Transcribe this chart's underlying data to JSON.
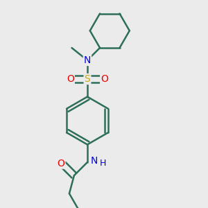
{
  "background_color": "#ebebeb",
  "bond_color": "#2d6e5a",
  "atom_colors": {
    "N": "#0000ee",
    "O": "#ee0000",
    "S": "#ccaa00"
  },
  "bond_width": 1.8,
  "figsize": [
    3.0,
    3.0
  ],
  "dpi": 100
}
